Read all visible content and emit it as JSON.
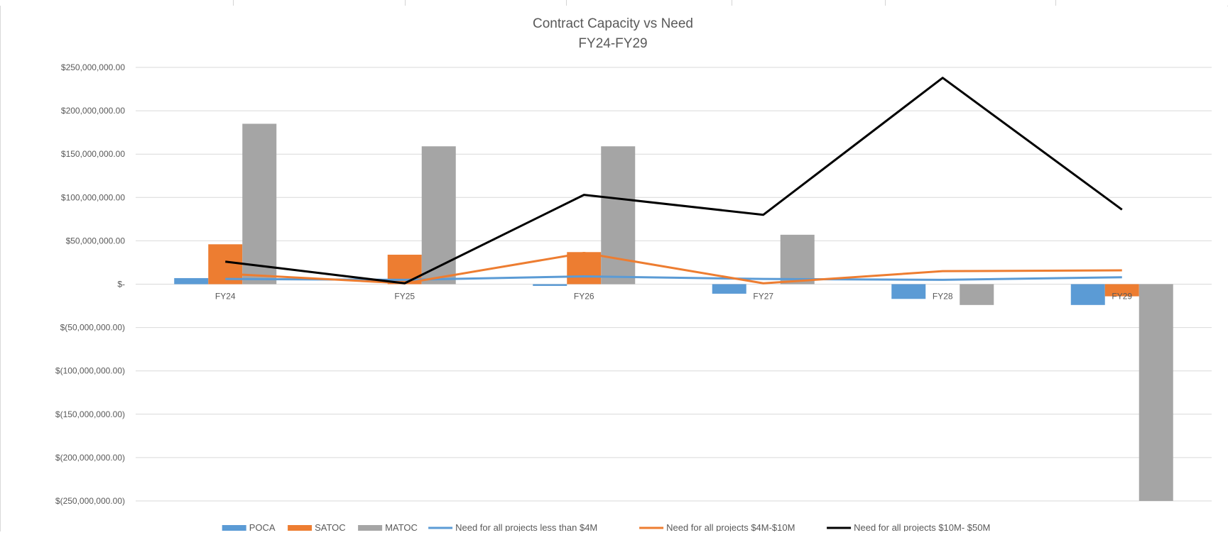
{
  "chart_data": {
    "type": "bar",
    "title": "Contract Capacity vs Need",
    "subtitle": "FY24-FY29",
    "categories": [
      "FY24",
      "FY25",
      "FY26",
      "FY27",
      "FY28",
      "FY29"
    ],
    "ylim": [
      -250000000,
      250000000
    ],
    "yticks": [
      250000000,
      200000000,
      150000000,
      100000000,
      50000000,
      0,
      -50000000,
      -100000000,
      -150000000,
      -200000000,
      -250000000
    ],
    "ytick_labels": [
      "$250,000,000.00",
      "$200,000,000.00",
      "$150,000,000.00",
      "$100,000,000.00",
      "$50,000,000.00",
      "$-",
      "$(50,000,000.00)",
      "$(100,000,000.00)",
      "$(150,000,000.00)",
      "$(200,000,000.00)",
      "$(250,000,000.00)"
    ],
    "grid": true,
    "legend_position": "bottom",
    "bar_series": [
      {
        "name": "POCA",
        "color": "#5b9bd5",
        "values": [
          7000000,
          0,
          -2000000,
          -11000000,
          -17000000,
          -24000000
        ]
      },
      {
        "name": "SATOC",
        "color": "#ed7d31",
        "values": [
          46000000,
          34000000,
          37000000,
          0,
          0,
          -14000000
        ]
      },
      {
        "name": "MATOC",
        "color": "#a5a5a5",
        "values": [
          185000000,
          159000000,
          159000000,
          57000000,
          -24000000,
          -250000000
        ]
      }
    ],
    "line_series": [
      {
        "name": "Need for all projects less than $4M",
        "color": "#5b9bd5",
        "values": [
          6000000,
          5000000,
          9000000,
          6000000,
          5000000,
          8000000
        ]
      },
      {
        "name": "Need for all projects $4M-$10M",
        "color": "#ed7d31",
        "values": [
          12000000,
          1000000,
          36000000,
          1000000,
          15000000,
          16000000
        ]
      },
      {
        "name": "Need for all projects $10M- $50M",
        "color": "#000000",
        "values": [
          26000000,
          1000000,
          103000000,
          80000000,
          238000000,
          86000000
        ]
      }
    ]
  }
}
